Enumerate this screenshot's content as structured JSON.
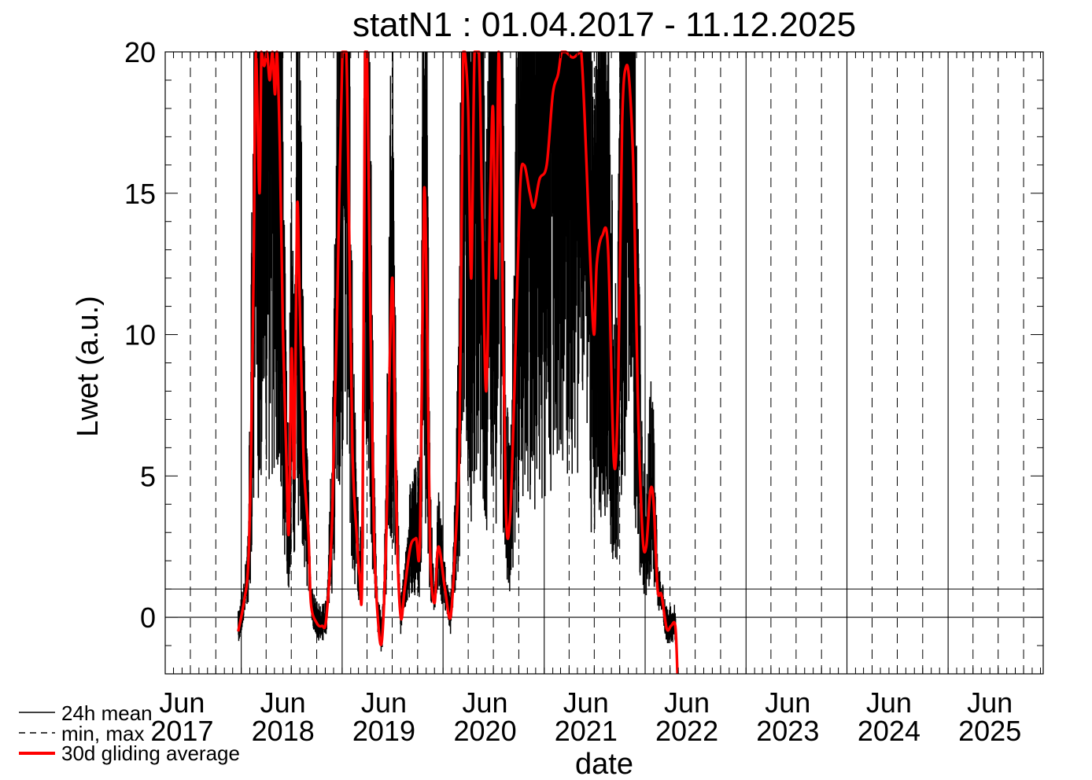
{
  "chart_data": {
    "type": "line",
    "title": "statN1 : 01.04.2017 - 11.12.2025",
    "xlabel": "date",
    "ylabel": "Lwet (a.u.)",
    "ylim": [
      -2,
      20
    ],
    "xlim": [
      "2017-04-01",
      "2025-12-11"
    ],
    "yticks": [
      0,
      5,
      10,
      15,
      20
    ],
    "xticks": [
      {
        "date": "2017-06-01",
        "month": "Jun",
        "year": "2017"
      },
      {
        "date": "2018-06-01",
        "month": "Jun",
        "year": "2018"
      },
      {
        "date": "2019-06-01",
        "month": "Jun",
        "year": "2019"
      },
      {
        "date": "2020-06-01",
        "month": "Jun",
        "year": "2020"
      },
      {
        "date": "2021-06-01",
        "month": "Jun",
        "year": "2021"
      },
      {
        "date": "2022-06-01",
        "month": "Jun",
        "year": "2022"
      },
      {
        "date": "2023-06-01",
        "month": "Jun",
        "year": "2023"
      },
      {
        "date": "2024-06-01",
        "month": "Jun",
        "year": "2024"
      },
      {
        "date": "2025-06-01",
        "month": "Jun",
        "year": "2025"
      }
    ],
    "grid": true,
    "reference_lines": [
      0,
      1
    ],
    "legend": {
      "placement": "bottom-left",
      "entries": [
        {
          "label": "24h mean",
          "style": "solid",
          "color": "#000000"
        },
        {
          "label": "min, max",
          "style": "dashed",
          "color": "#000000"
        },
        {
          "label": "30d gliding average",
          "style": "thick",
          "color": "#ff0000"
        }
      ]
    },
    "series": [
      {
        "name": "30d gliding average",
        "color": "#ff0000",
        "points": [
          [
            "2017-12-21",
            -0.5
          ],
          [
            "2018-01-10",
            0.5
          ],
          [
            "2018-01-26",
            1.8
          ],
          [
            "2018-02-05",
            5.5
          ],
          [
            "2018-02-15",
            12.5
          ],
          [
            "2018-02-23",
            20.0
          ],
          [
            "2018-03-08",
            15.0
          ],
          [
            "2018-03-15",
            20.0
          ],
          [
            "2018-03-25",
            19.5
          ],
          [
            "2018-04-04",
            20.0
          ],
          [
            "2018-04-14",
            19.0
          ],
          [
            "2018-04-24",
            20.0
          ],
          [
            "2018-05-03",
            18.5
          ],
          [
            "2018-05-10",
            20.0
          ],
          [
            "2018-05-21",
            16.5
          ],
          [
            "2018-06-01",
            10.0
          ],
          [
            "2018-06-12",
            6.0
          ],
          [
            "2018-06-22",
            3.0
          ],
          [
            "2018-07-02",
            9.5
          ],
          [
            "2018-07-12",
            5.0
          ],
          [
            "2018-07-22",
            14.5
          ],
          [
            "2018-08-01",
            11.0
          ],
          [
            "2018-08-15",
            5.5
          ],
          [
            "2018-09-01",
            3.0
          ],
          [
            "2018-09-10",
            0.5
          ],
          [
            "2018-10-01",
            -0.2
          ],
          [
            "2018-10-20",
            -0.3
          ],
          [
            "2018-11-05",
            0.0
          ],
          [
            "2018-11-26",
            3.5
          ],
          [
            "2018-12-14",
            11.0
          ],
          [
            "2019-01-02",
            20.0
          ],
          [
            "2019-01-16",
            20.0
          ],
          [
            "2019-01-26",
            14.0
          ],
          [
            "2019-02-07",
            6.0
          ],
          [
            "2019-02-22",
            3.0
          ],
          [
            "2019-03-05",
            1.5
          ],
          [
            "2019-03-15",
            2.0
          ],
          [
            "2019-03-25",
            20.0
          ],
          [
            "2019-04-01",
            20.0
          ],
          [
            "2019-04-14",
            10.0
          ],
          [
            "2019-04-26",
            3.0
          ],
          [
            "2019-05-10",
            0.0
          ],
          [
            "2019-05-25",
            -0.8
          ],
          [
            "2019-06-10",
            3.0
          ],
          [
            "2019-06-20",
            8.0
          ],
          [
            "2019-07-01",
            12.0
          ],
          [
            "2019-07-08",
            9.0
          ],
          [
            "2019-07-18",
            3.0
          ],
          [
            "2019-08-01",
            0.0
          ],
          [
            "2019-08-15",
            1.0
          ],
          [
            "2019-09-05",
            2.5
          ],
          [
            "2019-09-25",
            2.8
          ],
          [
            "2019-10-10",
            2.9
          ],
          [
            "2019-10-24",
            15.0
          ],
          [
            "2019-11-05",
            10.0
          ],
          [
            "2019-11-15",
            2.5
          ],
          [
            "2019-12-01",
            0.5
          ],
          [
            "2019-12-15",
            2.5
          ],
          [
            "2020-01-08",
            1.0
          ],
          [
            "2020-01-28",
            0.0
          ],
          [
            "2020-02-14",
            2.5
          ],
          [
            "2020-02-29",
            6.0
          ],
          [
            "2020-03-08",
            14.0
          ],
          [
            "2020-03-14",
            20.0
          ],
          [
            "2020-03-20",
            20.0
          ],
          [
            "2020-04-01",
            18.0
          ],
          [
            "2020-04-12",
            12.0
          ],
          [
            "2020-04-24",
            20.0
          ],
          [
            "2020-05-10",
            20.0
          ],
          [
            "2020-05-22",
            14.0
          ],
          [
            "2020-06-05",
            8.0
          ],
          [
            "2020-06-20",
            15.0
          ],
          [
            "2020-06-30",
            18.0
          ],
          [
            "2020-07-10",
            12.0
          ],
          [
            "2020-07-20",
            20.0
          ],
          [
            "2020-07-30",
            15.0
          ],
          [
            "2020-08-15",
            4.0
          ],
          [
            "2020-08-30",
            3.5
          ],
          [
            "2020-09-15",
            8.0
          ],
          [
            "2020-10-05",
            15.0
          ],
          [
            "2020-10-20",
            16.0
          ],
          [
            "2020-11-10",
            15.0
          ],
          [
            "2020-11-25",
            14.5
          ],
          [
            "2020-12-15",
            15.5
          ],
          [
            "2021-01-10",
            16.0
          ],
          [
            "2021-02-01",
            18.5
          ],
          [
            "2021-02-20",
            19.2
          ],
          [
            "2021-03-05",
            20.0
          ],
          [
            "2021-03-20",
            20.0
          ],
          [
            "2021-04-15",
            19.8
          ],
          [
            "2021-05-15",
            20.0
          ],
          [
            "2021-06-15",
            13.0
          ],
          [
            "2021-06-30",
            10.0
          ],
          [
            "2021-07-10",
            12.5
          ],
          [
            "2021-07-30",
            13.5
          ],
          [
            "2021-08-20",
            13.0
          ],
          [
            "2021-09-10",
            5.5
          ],
          [
            "2021-09-25",
            8.0
          ],
          [
            "2021-10-10",
            17.5
          ],
          [
            "2021-10-25",
            19.5
          ],
          [
            "2021-11-08",
            18.5
          ],
          [
            "2021-11-22",
            15.0
          ],
          [
            "2021-12-05",
            8.0
          ],
          [
            "2021-12-22",
            3.0
          ],
          [
            "2022-01-05",
            2.5
          ],
          [
            "2022-01-20",
            4.5
          ],
          [
            "2022-02-01",
            4.0
          ],
          [
            "2022-02-15",
            1.0
          ],
          [
            "2022-03-01",
            0.8
          ],
          [
            "2022-03-20",
            -0.4
          ],
          [
            "2022-04-05",
            -0.3
          ],
          [
            "2022-04-20",
            -0.3
          ],
          [
            "2022-04-28",
            -2.0
          ]
        ]
      }
    ]
  }
}
